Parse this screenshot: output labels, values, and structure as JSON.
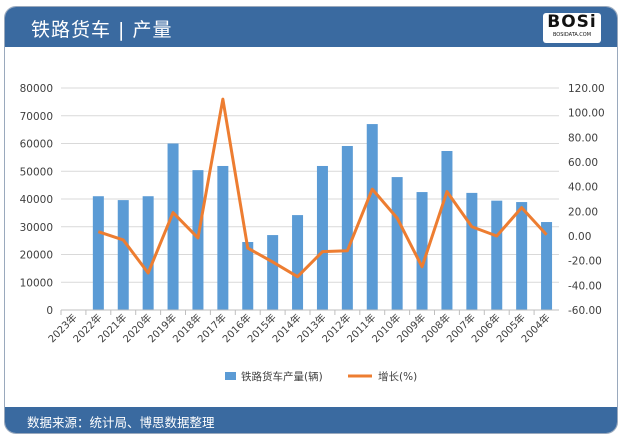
{
  "header": {
    "title": "铁路货车 | 产量",
    "logo_text": "BOSi",
    "logo_subtext": "BOSIDATA.COM"
  },
  "footer": {
    "source": "数据来源：统计局、博思数据整理"
  },
  "colors": {
    "header": "#3a6aa0",
    "bar": "#5b9bd5",
    "line": "#ed7d31"
  },
  "chart_data": {
    "type": "bar+line",
    "categories": [
      "2023年",
      "2022年",
      "2021年",
      "2020年",
      "2019年",
      "2018年",
      "2017年",
      "2016年",
      "2015年",
      "2014年",
      "2013年",
      "2012年",
      "2011年",
      "2010年",
      "2009年",
      "2008年",
      "2007年",
      "2006年",
      "2005年",
      "2004年"
    ],
    "series": [
      {
        "name": "铁路货车产量(辆)",
        "type": "bar",
        "axis": "left",
        "values": [
          null,
          41000,
          39600,
          41000,
          60000,
          50400,
          51900,
          24500,
          27000,
          34200,
          51900,
          59100,
          67000,
          47900,
          42500,
          57300,
          42200,
          39400,
          38900,
          31700
        ]
      },
      {
        "name": "增长(%)",
        "type": "line",
        "axis": "right",
        "values": [
          null,
          3.5,
          -3.2,
          -30,
          19,
          -1.6,
          111,
          -9.8,
          -21,
          -33,
          -12.7,
          -12,
          38,
          14.5,
          -25,
          36,
          7.5,
          0,
          23,
          1
        ]
      }
    ],
    "left_axis": {
      "ylim": [
        0,
        80000
      ],
      "ticks": [
        "0",
        "10000",
        "20000",
        "30000",
        "40000",
        "50000",
        "60000",
        "70000",
        "80000"
      ]
    },
    "right_axis": {
      "ylim": [
        -60,
        120
      ],
      "ticks": [
        "-60.00",
        "-40.00",
        "-20.00",
        "0.00",
        "20.00",
        "40.00",
        "60.00",
        "80.00",
        "100.00",
        "120.00"
      ]
    },
    "grid": true,
    "legend": "bottom"
  }
}
